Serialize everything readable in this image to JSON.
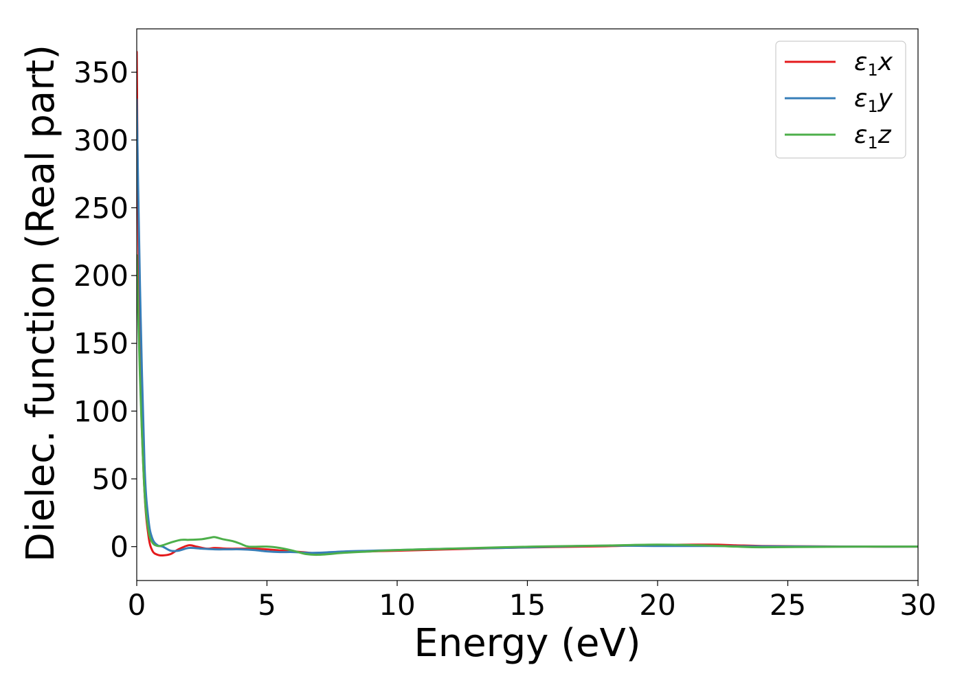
{
  "chart_data": {
    "type": "line",
    "title": "",
    "xlabel": "Energy (eV)",
    "ylabel": "Dielec. function (Real part)",
    "xlim": [
      0,
      30
    ],
    "ylim": [
      -25,
      382
    ],
    "xticks": [
      0,
      5,
      10,
      15,
      20,
      25,
      30
    ],
    "yticks": [
      0,
      50,
      100,
      150,
      200,
      250,
      300,
      350
    ],
    "grid": false,
    "legend_position": "top-right",
    "series": [
      {
        "name": "ε₁x",
        "legend_base": "ε",
        "legend_sub": "1",
        "legend_var": "x",
        "color": "#e41a1c",
        "x": [
          0,
          0.05,
          0.15,
          0.3,
          0.45,
          0.6,
          0.8,
          1.0,
          1.3,
          1.6,
          2.0,
          2.3,
          2.7,
          3.0,
          3.5,
          4.0,
          4.5,
          5.0,
          5.5,
          6.0,
          6.5,
          7.0,
          8.0,
          9.0,
          10.0,
          12.0,
          14.0,
          16.0,
          18.0,
          19.0,
          20.0,
          22.0,
          23.0,
          24.0,
          26.0,
          28.0,
          30.0
        ],
        "y": [
          365,
          250,
          120,
          40,
          8,
          -3,
          -6,
          -6.5,
          -5.5,
          -2,
          1,
          0,
          -1.5,
          -1,
          -1.5,
          -1.5,
          -1.5,
          -2,
          -2.8,
          -3.5,
          -4.3,
          -5,
          -4,
          -3.5,
          -3,
          -2,
          -1,
          -0.3,
          0.3,
          0.8,
          1.2,
          1.5,
          1,
          0.5,
          0.2,
          0,
          0
        ]
      },
      {
        "name": "ε₁y",
        "legend_base": "ε",
        "legend_sub": "1",
        "legend_var": "y",
        "color": "#377eb8",
        "x": [
          0,
          0.05,
          0.15,
          0.3,
          0.45,
          0.6,
          0.8,
          1.0,
          1.3,
          1.6,
          2.0,
          2.5,
          3.0,
          3.5,
          4.0,
          4.5,
          5.0,
          5.5,
          6.0,
          6.5,
          7.0,
          8.0,
          9.0,
          10.0,
          12.0,
          14.0,
          16.0,
          18.0,
          20.0,
          22.0,
          23.0,
          24.0,
          26.0,
          28.0,
          30.0
        ],
        "y": [
          330,
          270,
          170,
          60,
          20,
          6,
          1,
          0,
          -3,
          -3,
          -1,
          -1.5,
          -2,
          -2,
          -2,
          -2.5,
          -3.5,
          -4,
          -4,
          -4.5,
          -4.5,
          -3.5,
          -3,
          -2.5,
          -1.5,
          -1,
          0,
          0.7,
          0.5,
          0.5,
          0.3,
          0.2,
          0.1,
          0,
          0
        ]
      },
      {
        "name": "ε₁z",
        "legend_base": "ε",
        "legend_sub": "1",
        "legend_var": "z",
        "color": "#4daf4a",
        "x": [
          0,
          0.05,
          0.15,
          0.3,
          0.45,
          0.6,
          0.8,
          1.0,
          1.3,
          1.7,
          2.0,
          2.5,
          2.8,
          3.0,
          3.3,
          3.7,
          4.0,
          4.3,
          5.0,
          5.5,
          6.0,
          6.5,
          7.0,
          8.0,
          9.0,
          10.0,
          12.0,
          14.0,
          16.0,
          18.0,
          20.0,
          22.0,
          23.0,
          24.0,
          26.0,
          28.0,
          30.0
        ],
        "y": [
          215,
          175,
          110,
          40,
          12,
          3,
          0.5,
          1,
          3,
          5,
          5,
          5.5,
          6.5,
          7,
          5.5,
          4,
          2,
          0,
          0,
          -1,
          -3,
          -5.5,
          -6,
          -4.5,
          -3.5,
          -2.5,
          -1.5,
          -0.5,
          0.3,
          0.8,
          1.5,
          0.8,
          0,
          -0.5,
          -0.2,
          0,
          0
        ]
      }
    ]
  }
}
